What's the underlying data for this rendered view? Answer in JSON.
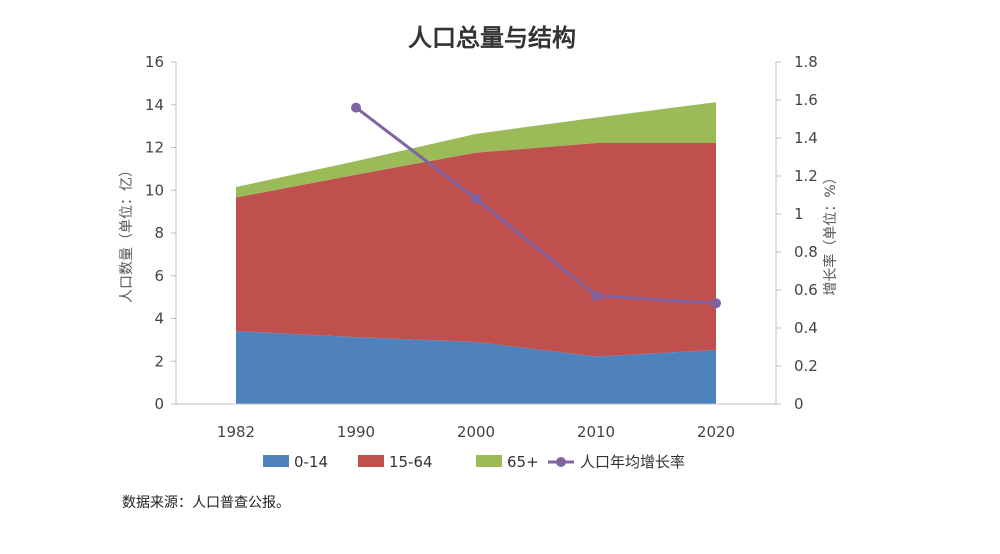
{
  "chart_data": {
    "type": "area",
    "title": "人口总量与结构",
    "categories": [
      "1982",
      "1990",
      "2000",
      "2010",
      "2020"
    ],
    "ylabel_left": "人口数量（单位：亿）",
    "ylabel_right": "增长率（单位：%）",
    "ylim_left": [
      0,
      16
    ],
    "ylim_right": [
      0,
      1.8
    ],
    "left_ticks": [
      "0",
      "2",
      "4",
      "6",
      "8",
      "10",
      "12",
      "14",
      "16"
    ],
    "right_ticks": [
      "0",
      "0.2",
      "0.4",
      "0.6",
      "0.8",
      "1",
      "1.2",
      "1.4",
      "1.6",
      "1.8"
    ],
    "series": [
      {
        "name": "0-14",
        "type": "area",
        "axis": "left",
        "color": "#4f81bd",
        "values": [
          3.41,
          3.13,
          2.9,
          2.22,
          2.53
        ]
      },
      {
        "name": "15-64",
        "type": "area",
        "axis": "left",
        "color": "#c0504d",
        "values": [
          6.25,
          7.6,
          8.86,
          9.99,
          9.68
        ]
      },
      {
        "name": "65+",
        "type": "area",
        "axis": "left",
        "color": "#9bbb59",
        "values": [
          0.49,
          0.63,
          0.88,
          1.19,
          1.91
        ]
      },
      {
        "name": "人口年均增长率",
        "type": "line",
        "axis": "right",
        "color": "#8064a2",
        "values": [
          null,
          1.56,
          1.08,
          0.57,
          0.53
        ]
      }
    ],
    "grid": false,
    "legend": "bottom"
  },
  "source_note": "数据来源：人口普查公报。"
}
